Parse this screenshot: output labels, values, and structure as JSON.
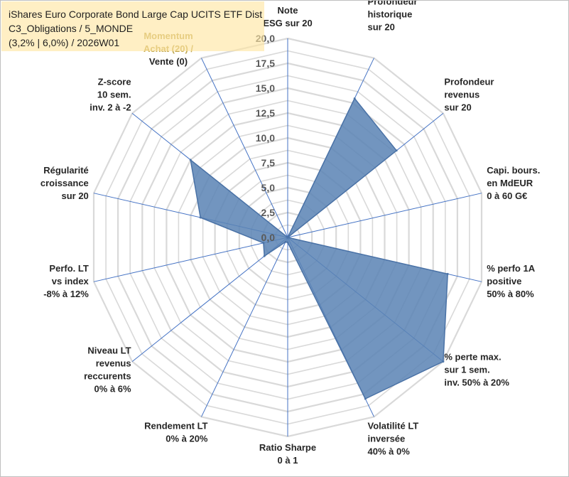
{
  "title_lines": [
    "iShares Euro Corporate Bond Large Cap UCITS ETF Dist",
    "C3_Obligations / 5_MONDE",
    "(3,2% | 6,0%) / 2026W01"
  ],
  "chart_data": {
    "type": "radar",
    "title": "iShares Euro Corporate Bond Large Cap UCITS ETF Dist",
    "r_range": [
      0,
      20
    ],
    "ticks": [
      "0,0",
      "2,5",
      "5,0",
      "7,5",
      "10,0",
      "12,5",
      "15,0",
      "17,5",
      "20,0"
    ],
    "grid": true,
    "colors": {
      "fill": "#5b84b4",
      "edge": "#4a72a6",
      "axis": "#4472c4",
      "grid": "#d9d9d9"
    },
    "axes": [
      {
        "lines": [
          "Note",
          "ESG sur 20"
        ],
        "value": 0
      },
      {
        "lines": [
          "Profondeur",
          "historique",
          "sur 20"
        ],
        "value": 15.5
      },
      {
        "lines": [
          "Profondeur",
          "revenus",
          "sur 20"
        ],
        "value": 14
      },
      {
        "lines": [
          "Capi. bours.",
          "en MdEUR",
          "0 à 60 G€"
        ],
        "value": 0
      },
      {
        "lines": [
          "% perfo 1A",
          "positive",
          "50% à 80%"
        ],
        "value": 16.5
      },
      {
        "lines": [
          "% perte max.",
          "sur 1 sem.",
          "inv. 50% à 20%"
        ],
        "value": 20
      },
      {
        "lines": [
          "Volatilité LT",
          "inversée",
          "40% à 0%"
        ],
        "value": 18
      },
      {
        "lines": [
          "Ratio Sharpe",
          "0 à 1"
        ],
        "value": 0.5
      },
      {
        "lines": [
          "Rendement LT",
          "0% à 20%"
        ],
        "value": 0.5
      },
      {
        "lines": [
          "Niveau LT",
          "revenus",
          "reccurents",
          "0% à 6%"
        ],
        "value": 3
      },
      {
        "lines": [
          "Perfo. LT",
          "vs index",
          "-8% à 12%"
        ],
        "value": 2.5
      },
      {
        "lines": [
          "Régularité",
          "croissance",
          "sur 20"
        ],
        "value": 9
      },
      {
        "lines": [
          "Z-score",
          "10 sem.",
          "inv. 2 à -2"
        ],
        "value": 12.5
      },
      {
        "lines": [
          "Momentum",
          "Achat (20) /",
          "Vente (0)"
        ],
        "value": 0
      }
    ]
  }
}
